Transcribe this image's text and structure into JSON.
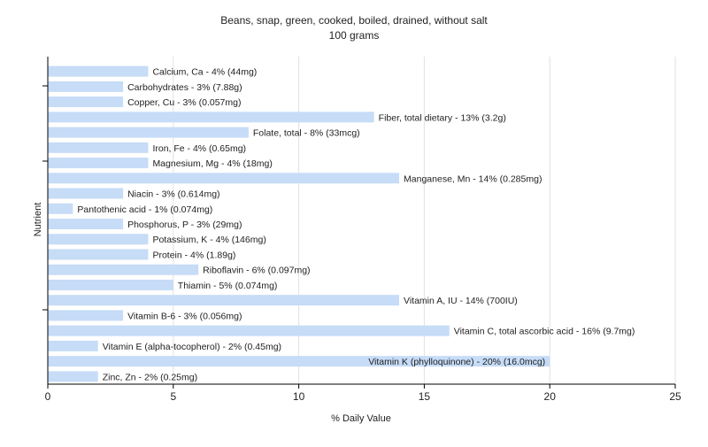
{
  "chart_data": {
    "type": "bar",
    "orientation": "horizontal",
    "title": "Beans, snap, green, cooked, boiled, drained, without salt",
    "subtitle": "100 grams",
    "xlabel": "% Daily Value",
    "ylabel": "Nutrient",
    "xlim": [
      0,
      25
    ],
    "xticks": [
      0,
      5,
      10,
      15,
      20,
      25
    ],
    "grid": true,
    "bar_color": "#c6dcf7",
    "categories": [
      "Calcium, Ca",
      "Carbohydrates",
      "Copper, Cu",
      "Fiber, total dietary",
      "Folate, total",
      "Iron, Fe",
      "Magnesium, Mg",
      "Manganese, Mn",
      "Niacin",
      "Pantothenic acid",
      "Phosphorus, P",
      "Potassium, K",
      "Protein",
      "Riboflavin",
      "Thiamin",
      "Vitamin A, IU",
      "Vitamin B-6",
      "Vitamin C, total ascorbic acid",
      "Vitamin E (alpha-tocopherol)",
      "Vitamin K (phylloquinone)",
      "Zinc, Zn"
    ],
    "values": [
      4,
      3,
      3,
      13,
      8,
      4,
      4,
      14,
      3,
      1,
      3,
      4,
      4,
      6,
      5,
      14,
      3,
      16,
      2,
      20,
      2
    ],
    "labels": [
      "Calcium, Ca - 4% (44mg)",
      "Carbohydrates - 3% (7.88g)",
      "Copper, Cu - 3% (0.057mg)",
      "Fiber, total dietary - 13% (3.2g)",
      "Folate, total - 8% (33mcg)",
      "Iron, Fe - 4% (0.65mg)",
      "Magnesium, Mg - 4% (18mg)",
      "Manganese, Mn - 14% (0.285mg)",
      "Niacin - 3% (0.614mg)",
      "Pantothenic acid - 1% (0.074mg)",
      "Phosphorus, P - 3% (29mg)",
      "Potassium, K - 4% (146mg)",
      "Protein - 4% (1.89g)",
      "Riboflavin - 6% (0.097mg)",
      "Thiamin - 5% (0.074mg)",
      "Vitamin A, IU - 14% (700IU)",
      "Vitamin B-6 - 3% (0.056mg)",
      "Vitamin C, total ascorbic acid - 16% (9.7mg)",
      "Vitamin E (alpha-tocopherol) - 2% (0.45mg)",
      "Vitamin K (phylloquinone) - 20% (16.0mcg)",
      "Zinc, Zn - 2% (0.25mg)"
    ]
  }
}
